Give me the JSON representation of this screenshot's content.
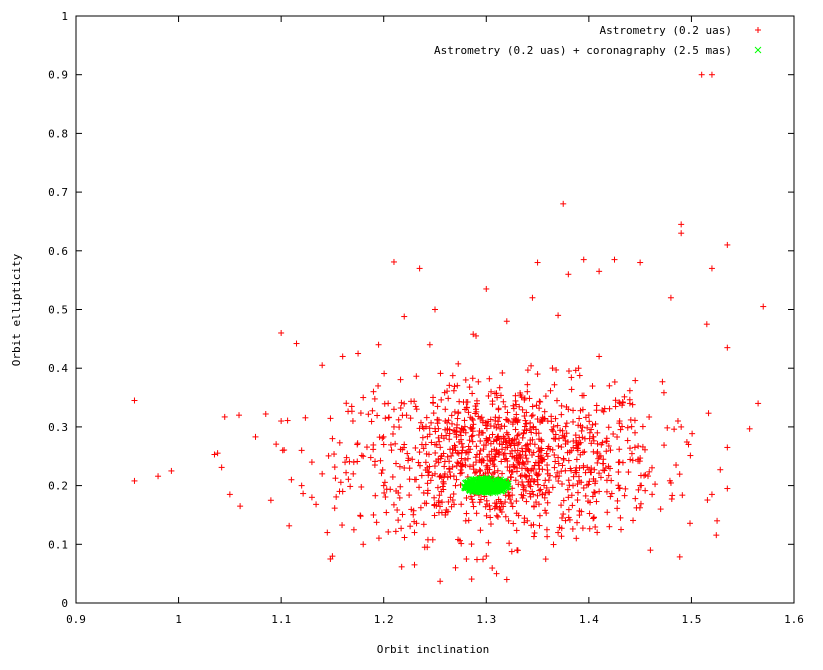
{
  "chart_data": {
    "type": "scatter",
    "xlabel": "Orbit inclination",
    "ylabel": "Orbit ellipticity",
    "xlim": [
      0.9,
      1.6
    ],
    "ylim": [
      0,
      1
    ],
    "xticks": [
      "0.9",
      "1",
      "1.1",
      "1.2",
      "1.3",
      "1.4",
      "1.5",
      "1.6"
    ],
    "yticks": [
      "0",
      "0.1",
      "0.2",
      "0.3",
      "0.4",
      "0.5",
      "0.6",
      "0.7",
      "0.8",
      "0.9",
      "1"
    ],
    "grid": false,
    "legend_position": "top-right",
    "series": [
      {
        "name": "Astrometry (0.2 uas)",
        "marker": "+",
        "color": "#ff0000",
        "points": [
          [
            0.957,
            0.345
          ],
          [
            0.957,
            0.208
          ],
          [
            0.98,
            0.216
          ],
          [
            0.993,
            0.225
          ],
          [
            1.035,
            0.253
          ],
          [
            1.042,
            0.231
          ],
          [
            1.045,
            0.317
          ],
          [
            1.05,
            0.185
          ],
          [
            1.06,
            0.165
          ],
          [
            1.075,
            0.283
          ],
          [
            1.085,
            0.322
          ],
          [
            1.09,
            0.175
          ],
          [
            1.1,
            0.46
          ],
          [
            1.115,
            0.442
          ],
          [
            1.1,
            0.31
          ],
          [
            1.12,
            0.2
          ],
          [
            1.13,
            0.24
          ],
          [
            1.14,
            0.405
          ],
          [
            1.145,
            0.12
          ],
          [
            1.148,
            0.075
          ],
          [
            1.16,
            0.42
          ],
          [
            1.175,
            0.425
          ],
          [
            1.18,
            0.35
          ],
          [
            1.195,
            0.44
          ],
          [
            1.21,
            0.581
          ],
          [
            1.22,
            0.488
          ],
          [
            1.235,
            0.57
          ],
          [
            1.25,
            0.5
          ],
          [
            1.245,
            0.44
          ],
          [
            1.2,
            0.27
          ],
          [
            1.23,
            0.065
          ],
          [
            1.24,
            0.095
          ],
          [
            1.255,
            0.037
          ],
          [
            1.26,
            0.33
          ],
          [
            1.27,
            0.06
          ],
          [
            1.29,
            0.455
          ],
          [
            1.3,
            0.535
          ],
          [
            1.32,
            0.48
          ],
          [
            1.345,
            0.52
          ],
          [
            1.35,
            0.58
          ],
          [
            1.37,
            0.49
          ],
          [
            1.375,
            0.68
          ],
          [
            1.38,
            0.56
          ],
          [
            1.395,
            0.585
          ],
          [
            1.41,
            0.565
          ],
          [
            1.425,
            0.585
          ],
          [
            1.45,
            0.58
          ],
          [
            1.48,
            0.52
          ],
          [
            1.49,
            0.645
          ],
          [
            1.49,
            0.63
          ],
          [
            1.51,
            0.9
          ],
          [
            1.52,
            0.9
          ],
          [
            1.52,
            0.57
          ],
          [
            1.535,
            0.61
          ],
          [
            1.57,
            0.505
          ],
          [
            1.535,
            0.435
          ],
          [
            1.515,
            0.475
          ],
          [
            1.565,
            0.34
          ],
          [
            1.535,
            0.265
          ],
          [
            1.535,
            0.195
          ],
          [
            1.52,
            0.185
          ],
          [
            1.525,
            0.14
          ],
          [
            1.49,
            0.3
          ],
          [
            1.485,
            0.235
          ],
          [
            1.47,
            0.16
          ],
          [
            1.46,
            0.09
          ],
          [
            1.45,
            0.2
          ],
          [
            1.445,
            0.29
          ],
          [
            1.43,
            0.31
          ],
          [
            1.42,
            0.37
          ],
          [
            1.41,
            0.42
          ],
          [
            1.39,
            0.4
          ],
          [
            1.38,
            0.33
          ],
          [
            1.36,
            0.25
          ],
          [
            1.35,
            0.21
          ],
          [
            1.34,
            0.14
          ],
          [
            1.33,
            0.09
          ],
          [
            1.32,
            0.04
          ],
          [
            1.31,
            0.05
          ],
          [
            1.3,
            0.08
          ],
          [
            1.28,
            0.14
          ],
          [
            1.27,
            0.26
          ],
          [
            1.26,
            0.31
          ],
          [
            1.25,
            0.22
          ],
          [
            1.24,
            0.17
          ],
          [
            1.23,
            0.12
          ],
          [
            1.22,
            0.27
          ],
          [
            1.21,
            0.33
          ],
          [
            1.2,
            0.2
          ],
          [
            1.19,
            0.15
          ],
          [
            1.18,
            0.25
          ],
          [
            1.17,
            0.31
          ],
          [
            1.16,
            0.19
          ],
          [
            1.15,
            0.28
          ],
          [
            1.14,
            0.22
          ],
          [
            1.13,
            0.18
          ],
          [
            1.12,
            0.26
          ],
          [
            1.11,
            0.21
          ],
          [
            1.34,
            0.36
          ],
          [
            1.36,
            0.31
          ],
          [
            1.39,
            0.27
          ],
          [
            1.41,
            0.19
          ],
          [
            1.42,
            0.13
          ],
          [
            1.43,
            0.24
          ],
          [
            1.44,
            0.34
          ],
          [
            1.32,
            0.29
          ],
          [
            1.33,
            0.23
          ],
          [
            1.31,
            0.17
          ],
          [
            1.29,
            0.33
          ],
          [
            1.28,
            0.38
          ],
          [
            1.27,
            0.2
          ],
          [
            1.26,
            0.15
          ],
          [
            1.35,
            0.39
          ],
          [
            1.37,
            0.12
          ],
          [
            1.38,
            0.18
          ],
          [
            1.4,
            0.32
          ],
          [
            1.22,
            0.23
          ],
          [
            1.21,
            0.3
          ],
          [
            1.19,
            0.36
          ],
          [
            1.18,
            0.1
          ],
          [
            1.3,
            0.28
          ],
          [
            1.31,
            0.26
          ],
          [
            1.29,
            0.24
          ],
          [
            1.33,
            0.31
          ],
          [
            1.34,
            0.27
          ],
          [
            1.36,
            0.22
          ],
          [
            1.28,
            0.29
          ],
          [
            1.25,
            0.27
          ]
        ]
      },
      {
        "name": "Astrometry (0.2 uas) + coronagraphy (2.5 mas)",
        "marker": "x",
        "color": "#00ff00",
        "cluster": {
          "center": [
            1.3,
            0.2
          ],
          "spread_x": 0.022,
          "spread_y": 0.013
        }
      }
    ]
  }
}
